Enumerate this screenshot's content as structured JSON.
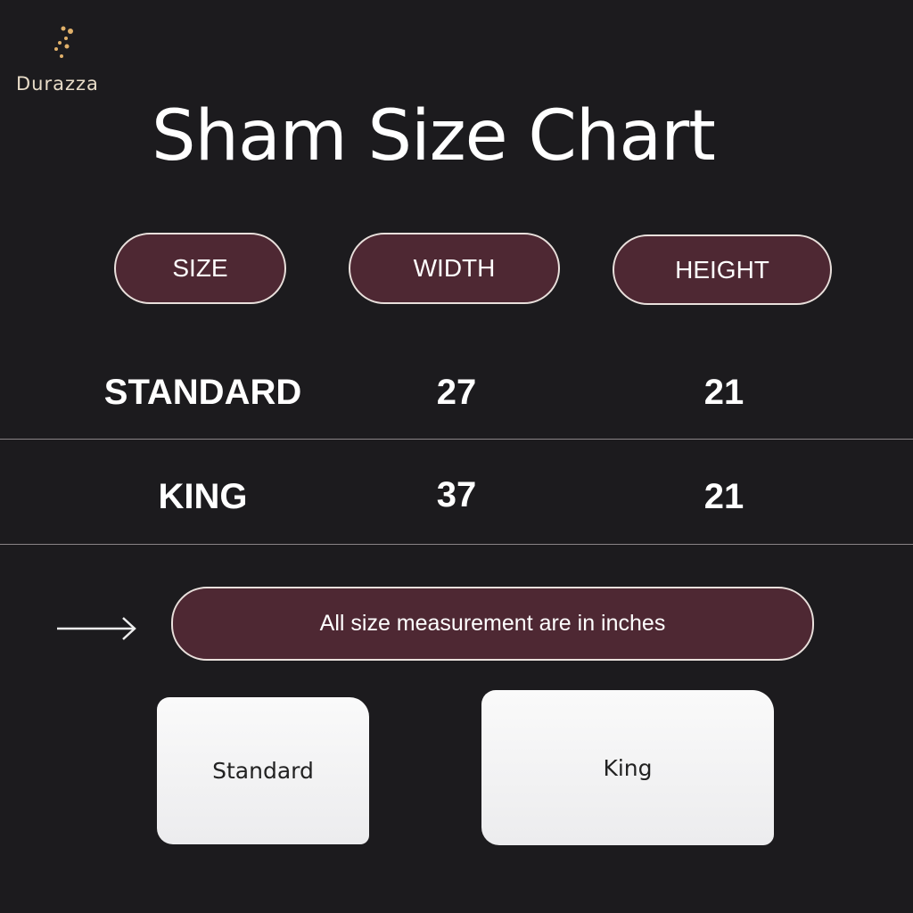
{
  "brand": {
    "name": "Durazza",
    "logo_icon": "crescent-moon-stars-icon",
    "logo_color": "#d9a85a"
  },
  "title": "Sham Size Chart",
  "headers": [
    "SIZE",
    "WIDTH",
    "HEIGHT"
  ],
  "rows": [
    {
      "size": "STANDARD",
      "width": "27",
      "height": "21"
    },
    {
      "size": "KING",
      "width": "37",
      "height": "21"
    }
  ],
  "note": {
    "icon": "arrow-right-icon",
    "text": "All size measurement are in inches"
  },
  "pillows": [
    {
      "label": "Standard"
    },
    {
      "label": "King"
    }
  ],
  "colors": {
    "background": "#1c1b1e",
    "pill": "#4e2833",
    "pill_border": "#e9e0dc"
  }
}
